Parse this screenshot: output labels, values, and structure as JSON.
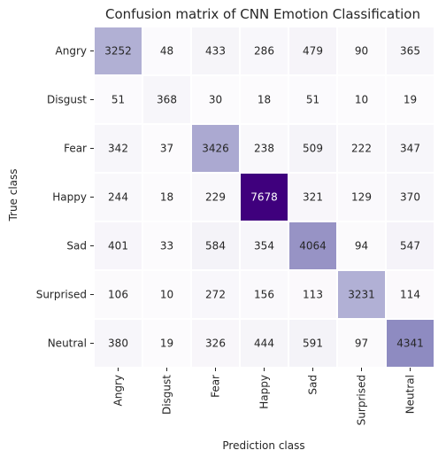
{
  "chart_data": {
    "type": "heatmap",
    "title": "Confusion matrix of CNN Emotion Classification",
    "xlabel": "Prediction class",
    "ylabel": "True class",
    "row_labels": [
      "Angry",
      "Disgust",
      "Fear",
      "Happy",
      "Sad",
      "Surprised",
      "Neutral"
    ],
    "col_labels": [
      "Angry",
      "Disgust",
      "Fear",
      "Happy",
      "Sad",
      "Surprised",
      "Neutral"
    ],
    "values": [
      [
        3252,
        48,
        433,
        286,
        479,
        90,
        365
      ],
      [
        51,
        368,
        30,
        18,
        51,
        10,
        19
      ],
      [
        342,
        37,
        3426,
        238,
        509,
        222,
        347
      ],
      [
        244,
        18,
        229,
        7678,
        321,
        129,
        370
      ],
      [
        401,
        33,
        584,
        354,
        4064,
        94,
        547
      ],
      [
        106,
        10,
        272,
        156,
        113,
        3231,
        114
      ],
      [
        380,
        19,
        326,
        444,
        591,
        97,
        4341
      ]
    ],
    "colormap": "Purples",
    "color_min": "#fcfbfd",
    "color_max": "#3f007d",
    "value_range": [
      10,
      7678
    ],
    "colorbar": false,
    "cell_separator_color": "#ffffff"
  }
}
